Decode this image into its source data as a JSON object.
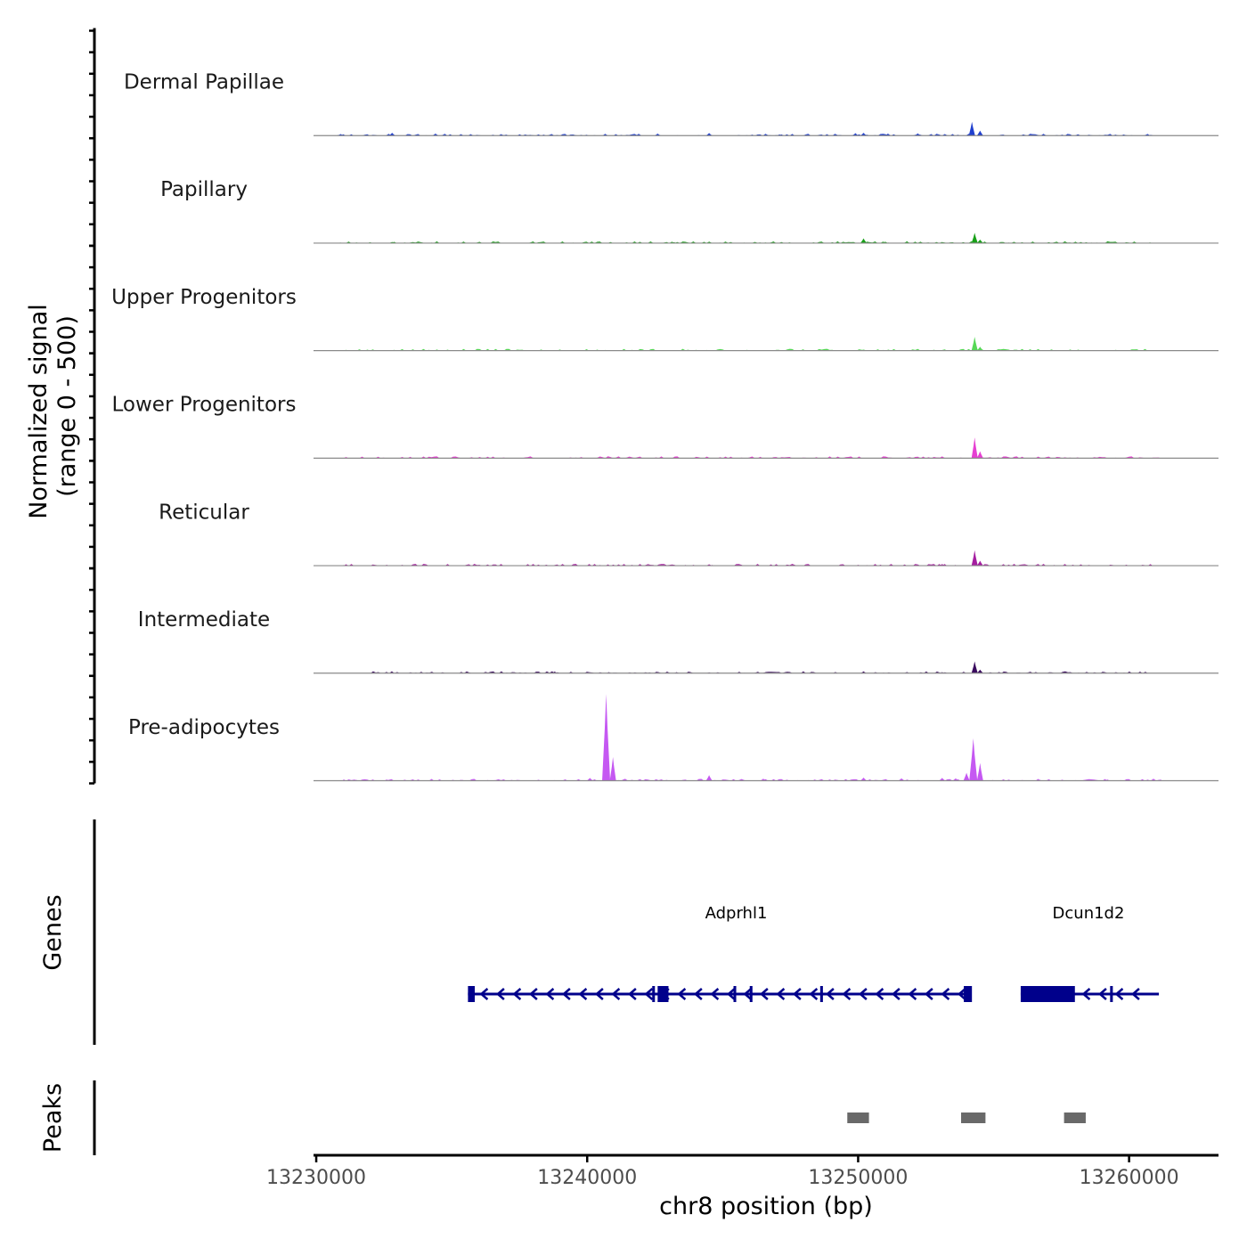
{
  "chart_data": {
    "type": "area",
    "title": "",
    "ylabel": "Normalized signal",
    "ylabel2": "(range 0 - 500)",
    "ylim": [
      0,
      500
    ],
    "xlabel": "chr8 position (bp)",
    "xlim": [
      13229900,
      13263300
    ],
    "x_ticks": [
      13230000,
      13240000,
      13250000,
      13260000
    ],
    "x_tick_labels": [
      "13230000",
      "13240000",
      "13250000",
      "13260000"
    ],
    "genes_label": "Genes",
    "peaks_label": "Peaks",
    "series": [
      {
        "name": "Dermal Papillae",
        "color": "#1f3fce",
        "baseline": [
          13229900,
          13263300
        ],
        "signal_range": [
          13230800,
          13260800
        ],
        "peaks": [
          [
            13230900,
            8
          ],
          [
            13232800,
            14
          ],
          [
            13234400,
            10
          ],
          [
            13235700,
            7
          ],
          [
            13238200,
            6
          ],
          [
            13241900,
            9
          ],
          [
            13242600,
            10
          ],
          [
            13244500,
            13
          ],
          [
            13247100,
            6
          ],
          [
            13249900,
            12
          ],
          [
            13250200,
            14
          ],
          [
            13251100,
            10
          ],
          [
            13252200,
            11
          ],
          [
            13253200,
            8
          ],
          [
            13254200,
            70
          ],
          [
            13254500,
            25
          ],
          [
            13256100,
            6
          ],
          [
            13258100,
            6
          ],
          [
            13259500,
            5
          ],
          [
            13260800,
            4
          ]
        ]
      },
      {
        "name": "Papillary",
        "color": "#18a018",
        "baseline": [
          13229900,
          13263300
        ],
        "signal_range": [
          13230800,
          13260800
        ],
        "peaks": [
          [
            13232800,
            6
          ],
          [
            13240400,
            5
          ],
          [
            13243200,
            5
          ],
          [
            13244500,
            7
          ],
          [
            13250200,
            24
          ],
          [
            13251000,
            7
          ],
          [
            13251800,
            9
          ],
          [
            13252300,
            6
          ],
          [
            13254300,
            52
          ],
          [
            13254500,
            18
          ],
          [
            13258000,
            4
          ]
        ]
      },
      {
        "name": "Upper Progenitors",
        "color": "#57d857",
        "baseline": [
          13229900,
          13263300
        ],
        "signal_range": [
          13231000,
          13260800
        ],
        "peaks": [
          [
            13236000,
            3
          ],
          [
            13241000,
            3
          ],
          [
            13250200,
            5
          ],
          [
            13254300,
            70
          ],
          [
            13254500,
            20
          ]
        ]
      },
      {
        "name": "Lower Progenitors",
        "color": "#e63fd2",
        "baseline": [
          13229900,
          13263300
        ],
        "signal_range": [
          13231000,
          13261200
        ],
        "peaks": [
          [
            13234000,
            3
          ],
          [
            13243200,
            3
          ],
          [
            13249500,
            3
          ],
          [
            13252200,
            4
          ],
          [
            13253100,
            9
          ],
          [
            13254300,
            105
          ],
          [
            13254500,
            35
          ],
          [
            13258100,
            4
          ]
        ]
      },
      {
        "name": "Reticular",
        "color": "#a51ea0",
        "baseline": [
          13229900,
          13263300
        ],
        "signal_range": [
          13231000,
          13261200
        ],
        "peaks": [
          [
            13231000,
            3
          ],
          [
            13232600,
            4
          ],
          [
            13243100,
            5
          ],
          [
            13244500,
            7
          ],
          [
            13250000,
            4
          ],
          [
            13253100,
            8
          ],
          [
            13254300,
            78
          ],
          [
            13254500,
            25
          ],
          [
            13258200,
            4
          ]
        ]
      },
      {
        "name": "Intermediate",
        "color": "#3a0b5e",
        "baseline": [
          13229900,
          13263300
        ],
        "signal_range": [
          13232000,
          13260800
        ],
        "peaks": [
          [
            13232600,
            3
          ],
          [
            13238800,
            8
          ],
          [
            13240800,
            5
          ],
          [
            13242300,
            4
          ],
          [
            13243300,
            5
          ],
          [
            13244500,
            4
          ],
          [
            13250200,
            9
          ],
          [
            13251800,
            6
          ],
          [
            13253100,
            5
          ],
          [
            13254300,
            60
          ],
          [
            13254500,
            18
          ],
          [
            13255200,
            6
          ]
        ]
      },
      {
        "name": "Pre-adipocytes",
        "color": "#c558f2",
        "baseline": [
          13229900,
          13263300
        ],
        "signal_range": [
          13231000,
          13261200
        ],
        "peaks": [
          [
            13231400,
            5
          ],
          [
            13232600,
            6
          ],
          [
            13235400,
            4
          ],
          [
            13238200,
            5
          ],
          [
            13240100,
            14
          ],
          [
            13240700,
            440
          ],
          [
            13240950,
            120
          ],
          [
            13241400,
            10
          ],
          [
            13244500,
            28
          ],
          [
            13246500,
            10
          ],
          [
            13248400,
            6
          ],
          [
            13250200,
            16
          ],
          [
            13251600,
            12
          ],
          [
            13253100,
            14
          ],
          [
            13253600,
            12
          ],
          [
            13254000,
            40
          ],
          [
            13254250,
            215
          ],
          [
            13254500,
            90
          ],
          [
            13256700,
            5
          ],
          [
            13259200,
            6
          ],
          [
            13260900,
            10
          ]
        ]
      }
    ],
    "genes": [
      {
        "name": "Adprhl1",
        "label_x": 13245500,
        "strand": "-",
        "color": "#00008b",
        "start": 13235600,
        "end": 13254100,
        "exons": [
          [
            13235600,
            13235850
          ],
          [
            13242400,
            13242500
          ],
          [
            13242600,
            13243000
          ],
          [
            13245400,
            13245500
          ],
          [
            13246000,
            13246100
          ],
          [
            13248600,
            13248700
          ],
          [
            13253900,
            13254200
          ]
        ]
      },
      {
        "name": "Dcun1d2",
        "label_x": 13258500,
        "strand": "-",
        "color": "#00008b",
        "start": 13256000,
        "end": 13261100,
        "exons": [
          [
            13256000,
            13258000
          ],
          [
            13259300,
            13259400
          ]
        ]
      }
    ],
    "peak_regions": [
      [
        13249600,
        13250400
      ],
      [
        13253800,
        13254700
      ],
      [
        13257600,
        13258400
      ]
    ]
  }
}
